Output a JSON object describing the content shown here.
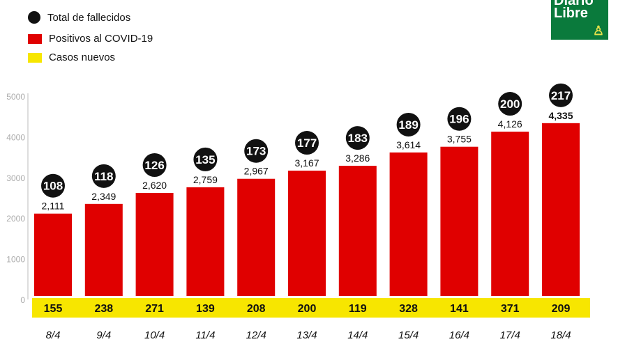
{
  "legend": [
    {
      "label": "Total de fallecidos",
      "color": "#111111",
      "shape": "circle"
    },
    {
      "label": "Positivos al COVID-19",
      "color": "#e00000",
      "shape": "square"
    },
    {
      "label": "Casos nuevos",
      "color": "#f7e600",
      "shape": "square"
    }
  ],
  "logo": {
    "line1": "Diario",
    "line2": "Libre",
    "color": "#0a7a3c"
  },
  "chart_data": {
    "type": "bar",
    "categories": [
      "8/4",
      "9/4",
      "10/4",
      "11/4",
      "12/4",
      "13/4",
      "14/4",
      "15/4",
      "16/4",
      "17/4",
      "18/4"
    ],
    "series": [
      {
        "name": "Positivos al COVID-19",
        "values": [
          2111,
          2349,
          2620,
          2759,
          2967,
          3167,
          3286,
          3614,
          3755,
          4126,
          4335
        ],
        "labels": [
          "2,111",
          "2,349",
          "2,620",
          "2,759",
          "2,967",
          "3,167",
          "3,286",
          "3,614",
          "3,755",
          "4,126",
          "4,335"
        ]
      },
      {
        "name": "Total de fallecidos",
        "values": [
          108,
          118,
          126,
          135,
          173,
          177,
          183,
          189,
          196,
          200,
          217
        ]
      },
      {
        "name": "Casos nuevos",
        "values": [
          155,
          238,
          271,
          139,
          208,
          200,
          119,
          328,
          141,
          371,
          209
        ]
      }
    ],
    "yticks": [
      0,
      1000,
      2000,
      3000,
      4000,
      5000
    ],
    "ylim": [
      0,
      5000
    ],
    "grid": false,
    "legend_position": "top-left"
  }
}
